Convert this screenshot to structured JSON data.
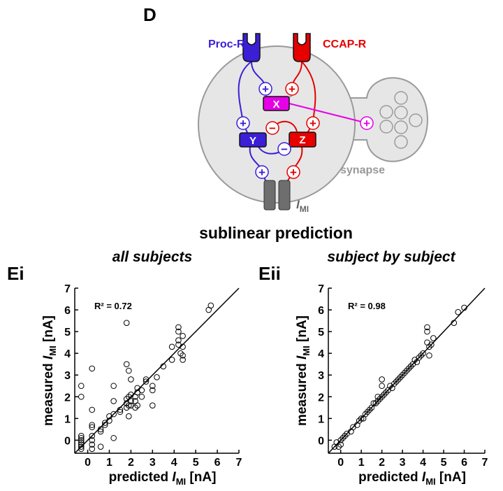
{
  "figure": {
    "panel_label": "D",
    "title": "sublinear prediction",
    "diagram": {
      "receptor_1": "Proc-R",
      "receptor_2": "CCAP-R",
      "node_x": "X",
      "node_y": "Y",
      "node_z": "Z",
      "plus": "+",
      "minus": "−",
      "synapse": "synapse",
      "current_var": "I",
      "current_sub": "MI"
    }
  },
  "chart_data": [
    {
      "type": "scatter",
      "panel_label": "Ei",
      "title": "all subjects",
      "annotation": "R² = 0.72",
      "xlabel": {
        "prefix": "predicted ",
        "var": "I",
        "sub": "MI",
        "suffix": " [nA]"
      },
      "ylabel": {
        "prefix": "measured ",
        "var": "I",
        "sub": "MI",
        "suffix": " [nA]"
      },
      "xlim": [
        -0.6,
        7
      ],
      "ylim": [
        -0.6,
        7
      ],
      "xticks": [
        0,
        1,
        2,
        3,
        4,
        5,
        6,
        7
      ],
      "yticks": [
        0,
        1,
        2,
        3,
        4,
        5,
        6,
        7
      ],
      "identity_line": true,
      "color": "#000000",
      "x": [
        -0.3,
        -0.3,
        -0.3,
        -0.3,
        -0.3,
        -0.3,
        -0.3,
        -0.3,
        -0.3,
        0.2,
        0.2,
        0.2,
        0.2,
        0.2,
        0.2,
        0.2,
        0.2,
        0.6,
        0.6,
        0.6,
        0.8,
        0.8,
        1.0,
        1.0,
        1.2,
        1.2,
        1.2,
        1.2,
        1.5,
        1.5,
        1.8,
        1.8,
        1.8,
        1.8,
        1.8,
        1.9,
        1.9,
        1.9,
        1.9,
        2.0,
        2.0,
        2.0,
        2.0,
        2.2,
        2.2,
        2.2,
        2.3,
        2.3,
        2.3,
        2.5,
        2.5,
        2.7,
        2.7,
        3.0,
        3.0,
        3.0,
        3.2,
        3.5,
        3.9,
        3.9,
        4.2,
        4.2,
        4.2,
        4.2,
        4.3,
        4.4,
        4.4,
        4.4,
        4.4,
        5.6,
        5.7
      ],
      "y": [
        2.5,
        2.0,
        0.2,
        0.1,
        0,
        -0.1,
        -0.2,
        -0.3,
        -0.4,
        3.3,
        1.4,
        0.7,
        0.6,
        0.2,
        0,
        -0.2,
        -0.4,
        0.5,
        0.4,
        -0.3,
        0.8,
        0.7,
        1.1,
        0.9,
        2.5,
        1.8,
        1.2,
        0.1,
        1.4,
        1.3,
        5.4,
        3.5,
        1.9,
        1.7,
        1.5,
        3.2,
        2.0,
        1.6,
        1.1,
        2.8,
        2.1,
        1.8,
        1.6,
        2.0,
        1.8,
        1.5,
        2.4,
        2.2,
        1.6,
        2.3,
        2.0,
        2.8,
        2.7,
        2.5,
        2.3,
        1.6,
        2.9,
        3.4,
        4.3,
        3.7,
        5.2,
        5.0,
        4.6,
        4.4,
        4.0,
        4.8,
        4.3,
        3.9,
        3.7,
        6.0,
        6.2
      ]
    },
    {
      "type": "scatter",
      "panel_label": "Eii",
      "title": "subject by subject",
      "annotation": "R² = 0.98",
      "xlabel": {
        "prefix": "predicted ",
        "var": "I",
        "sub": "MI",
        "suffix": " [nA]"
      },
      "ylabel": {
        "prefix": "measured ",
        "var": "I",
        "sub": "MI",
        "suffix": " [nA]"
      },
      "xlim": [
        -0.6,
        7
      ],
      "ylim": [
        -0.6,
        7
      ],
      "xticks": [
        0,
        1,
        2,
        3,
        4,
        5,
        6,
        7
      ],
      "yticks": [
        0,
        1,
        2,
        3,
        4,
        5,
        6,
        7
      ],
      "identity_line": true,
      "color": "#000000",
      "x": [
        -0.3,
        -0.2,
        -0.1,
        0,
        0,
        0.1,
        0.2,
        0.3,
        0.5,
        0.6,
        0.8,
        0.9,
        1.0,
        1.1,
        1.2,
        1.3,
        1.4,
        1.5,
        1.6,
        1.7,
        1.8,
        1.8,
        1.9,
        2.0,
        2.0,
        2.0,
        2.1,
        2.2,
        2.3,
        2.4,
        2.5,
        2.6,
        2.7,
        2.8,
        2.9,
        3.0,
        3.1,
        3.2,
        3.3,
        3.4,
        3.5,
        3.6,
        3.7,
        3.8,
        3.9,
        4.0,
        4.2,
        4.2,
        4.2,
        4.3,
        4.3,
        4.4,
        4.5,
        5.5,
        5.7,
        6.0
      ],
      "y": [
        -0.3,
        -0.1,
        -0.3,
        0,
        -0.2,
        0.1,
        0.2,
        0.3,
        0.4,
        0.6,
        0.7,
        0.9,
        1.0,
        1.0,
        1.2,
        1.3,
        1.4,
        1.5,
        1.7,
        1.7,
        1.8,
        2.0,
        1.9,
        2.8,
        2.5,
        2.0,
        2.1,
        2.2,
        2.3,
        2.5,
        2.4,
        2.6,
        2.7,
        2.8,
        2.9,
        3.0,
        3.1,
        3.2,
        3.3,
        3.4,
        3.5,
        3.7,
        3.6,
        3.8,
        3.9,
        4.0,
        5.2,
        5.0,
        4.5,
        4.3,
        3.9,
        4.4,
        4.7,
        5.4,
        5.9,
        6.1
      ]
    }
  ]
}
